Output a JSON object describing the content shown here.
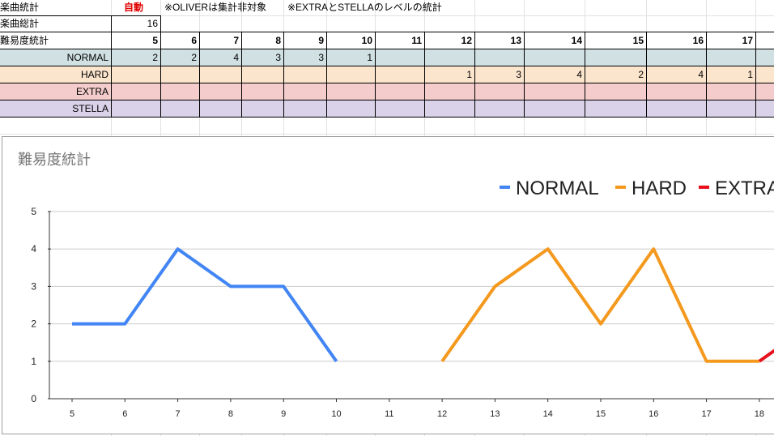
{
  "sheet": {
    "a1": "楽曲統計",
    "b1_auto": "自動",
    "note1": "※OLIVERは集計非対象",
    "note2": "※EXTRAとSTELLAのレベルの統計",
    "a2": "楽曲総計",
    "total_value": "16",
    "a3": "難易度統計",
    "levels": [
      "5",
      "6",
      "7",
      "8",
      "9",
      "10",
      "11",
      "12",
      "13",
      "14",
      "15",
      "16",
      "17"
    ],
    "rows": [
      {
        "label": "NORMAL",
        "color": "#d0e0e3",
        "values": [
          "2",
          "2",
          "4",
          "3",
          "3",
          "1",
          "",
          "",
          "",
          "",
          "",
          "",
          ""
        ]
      },
      {
        "label": "HARD",
        "color": "#fce5cd",
        "values": [
          "",
          "",
          "",
          "",
          "",
          "",
          "",
          "1",
          "3",
          "4",
          "2",
          "4",
          "1"
        ]
      },
      {
        "label": "EXTRA",
        "color": "#f4cccc",
        "values": [
          "",
          "",
          "",
          "",
          "",
          "",
          "",
          "",
          "",
          "",
          "",
          "",
          ""
        ]
      },
      {
        "label": "STELLA",
        "color": "#d9d2e9",
        "values": [
          "",
          "",
          "",
          "",
          "",
          "",
          "",
          "",
          "",
          "",
          "",
          "",
          ""
        ]
      }
    ]
  },
  "chart_data": {
    "type": "line",
    "title": "難易度統計",
    "x": [
      5,
      6,
      7,
      8,
      9,
      10,
      11,
      12,
      13,
      14,
      15,
      16,
      17,
      18
    ],
    "ylim": [
      0,
      5
    ],
    "yticks": [
      "0",
      "1",
      "2",
      "3",
      "4",
      "5"
    ],
    "grid": true,
    "legend_position": "top-right",
    "series": [
      {
        "name": "NORMAL",
        "color": "#4285f4",
        "points": [
          [
            5,
            2
          ],
          [
            6,
            2
          ],
          [
            7,
            4
          ],
          [
            8,
            3
          ],
          [
            9,
            3
          ],
          [
            10,
            1
          ]
        ]
      },
      {
        "name": "HARD",
        "color": "#f4991e",
        "points": [
          [
            12,
            1
          ],
          [
            13,
            3
          ],
          [
            14,
            4
          ],
          [
            15,
            2
          ],
          [
            16,
            4
          ],
          [
            17,
            1
          ],
          [
            18,
            1
          ]
        ]
      },
      {
        "name": "EXTRA",
        "color": "#e8101c",
        "points": [
          [
            18,
            1
          ],
          [
            18.4,
            1.4
          ]
        ]
      }
    ]
  }
}
